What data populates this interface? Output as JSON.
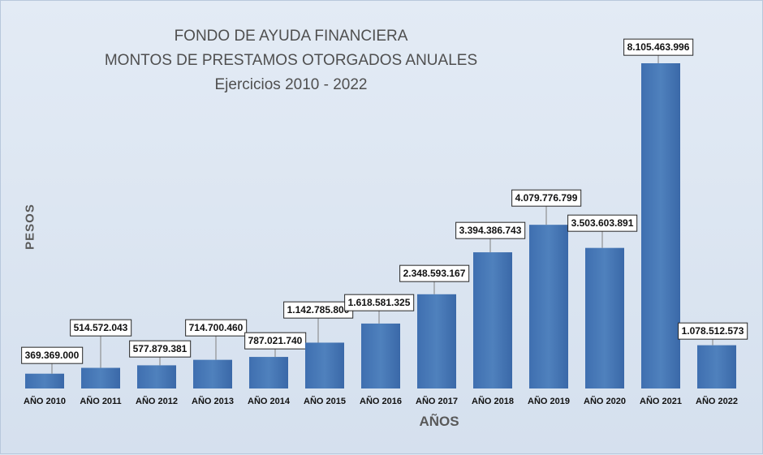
{
  "chart_data": {
    "type": "bar",
    "title": "FONDO DE AYUDA FINANCIERA",
    "subtitle": "MONTOS DE PRESTAMOS OTORGADOS ANUALES",
    "subtitle2": "Ejercicios 2010 - 2022",
    "xlabel": "AÑOS",
    "ylabel": "PESOS",
    "categories": [
      "AÑO 2010",
      "AÑO 2011",
      "AÑO 2012",
      "AÑO 2013",
      "AÑO 2014",
      "AÑO 2015",
      "AÑO 2016",
      "AÑO 2017",
      "AÑO 2018",
      "AÑO 2019",
      "AÑO 2020",
      "AÑO 2021",
      "AÑO 2022"
    ],
    "values": [
      369369000,
      514572043,
      577879381,
      714700460,
      787021740,
      1142785800,
      1618581325,
      2348593167,
      3394386743,
      4079776799,
      3503603891,
      8105463996,
      1078512573
    ],
    "value_labels": [
      "369.369.000",
      "514.572.043",
      "577.879.381",
      "714.700.460",
      "787.021.740",
      "1.142.785.800",
      "1.618.581.325",
      "2.348.593.167",
      "3.394.386.743",
      "4.079.776.799",
      "3.503.603.891",
      "8.105.463.996",
      "1.078.512.573"
    ],
    "bar_color": "#4f81bd",
    "background_color": "#dce6f2",
    "grid": false,
    "legend": "none"
  }
}
